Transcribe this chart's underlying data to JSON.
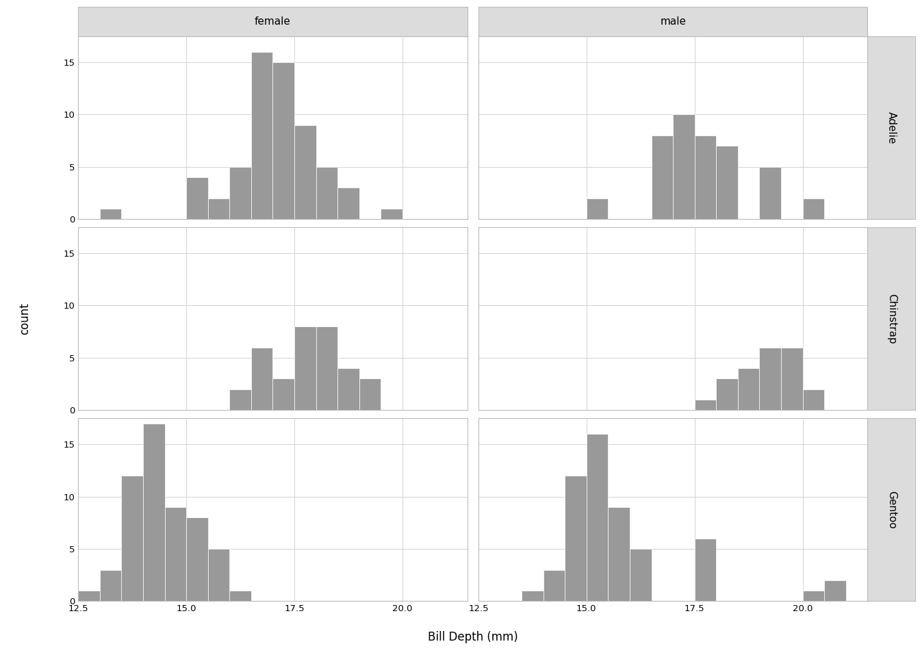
{
  "xlabel": "Bill Depth (mm)",
  "ylabel": "count",
  "col_labels": [
    "female",
    "male"
  ],
  "row_labels": [
    "Adelie",
    "Chinstrap",
    "Gentoo"
  ],
  "bar_color": "#999999",
  "bar_edgecolor": "#ffffff",
  "background_color": "#ffffff",
  "panel_bg": "#ffffff",
  "strip_bg": "#dcdcdc",
  "xlim": [
    12.5,
    21.5
  ],
  "ylim": [
    0,
    17.5
  ],
  "xticks": [
    12.5,
    15.0,
    17.5,
    20.0
  ],
  "yticks": [
    0,
    5,
    10,
    15
  ],
  "bin_width": 0.5,
  "counts": {
    "Adelie_female": {
      "bins": [
        13.0,
        13.5,
        15.0,
        15.5,
        16.0,
        16.5,
        17.0,
        17.5,
        18.0,
        18.5,
        19.5
      ],
      "values": [
        1,
        0,
        4,
        2,
        5,
        16,
        15,
        9,
        5,
        3,
        1
      ]
    },
    "Adelie_male": {
      "bins": [
        15.0,
        16.5,
        17.0,
        17.5,
        18.0,
        18.5,
        19.0,
        19.5,
        20.0
      ],
      "values": [
        2,
        8,
        10,
        8,
        7,
        0,
        5,
        0,
        2
      ]
    },
    "Chinstrap_female": {
      "bins": [
        16.0,
        16.5,
        17.0,
        17.5,
        18.0,
        18.5,
        19.0
      ],
      "values": [
        2,
        6,
        3,
        8,
        8,
        4,
        3
      ]
    },
    "Chinstrap_male": {
      "bins": [
        17.5,
        18.0,
        18.5,
        19.0,
        19.5,
        20.0
      ],
      "values": [
        1,
        3,
        4,
        6,
        6,
        2
      ]
    },
    "Gentoo_female": {
      "bins": [
        12.5,
        13.0,
        13.5,
        14.0,
        14.5,
        15.0,
        15.5,
        16.0,
        16.5
      ],
      "values": [
        1,
        3,
        12,
        17,
        9,
        8,
        5,
        1,
        0
      ]
    },
    "Gentoo_male": {
      "bins": [
        13.5,
        14.0,
        14.5,
        15.0,
        15.5,
        16.0,
        17.5,
        19.5,
        20.0,
        20.5
      ],
      "values": [
        1,
        3,
        12,
        16,
        9,
        5,
        6,
        0,
        1,
        2
      ]
    }
  },
  "ytick_labels": [
    "0",
    "5",
    "10",
    "15"
  ],
  "xtick_labels": [
    "12.5",
    "15.0",
    "17.5",
    "20.0"
  ]
}
